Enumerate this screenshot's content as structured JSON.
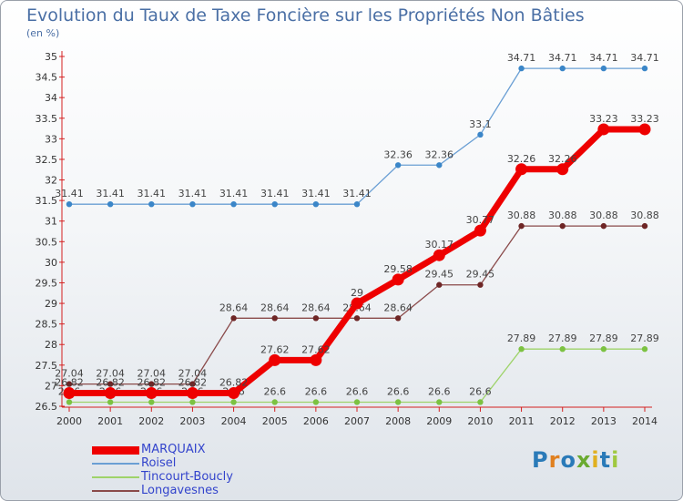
{
  "title": "Evolution du Taux de Taxe Foncière sur les Propriétés Non Bâties",
  "unit_label": "(en %)",
  "logo_text": "Proxiti",
  "chart_data": {
    "type": "line",
    "title": "Evolution du Taux de Taxe Foncière sur les Propriétés Non Bâties",
    "ylabel": "(en %)",
    "xlabel": "",
    "categories": [
      "2000",
      "2001",
      "2002",
      "2003",
      "2004",
      "2005",
      "2006",
      "2007",
      "2008",
      "2009",
      "2010",
      "2011",
      "2012",
      "2013",
      "2014"
    ],
    "ylim": [
      26.5,
      35
    ],
    "yticks": [
      "26.5",
      "27",
      "27.5",
      "28",
      "28.5",
      "29",
      "29.5",
      "30",
      "30.5",
      "31",
      "31.5",
      "32",
      "32.5",
      "33",
      "33.5",
      "34",
      "34.5",
      "35"
    ],
    "grid": false,
    "legend": "bottom-left",
    "series": [
      {
        "name": "Roisel",
        "color": "#6a9fd4",
        "marker": "#3b86c8",
        "width": 1.3,
        "r": 3.2,
        "values": [
          31.41,
          31.41,
          31.41,
          31.41,
          31.41,
          31.41,
          31.41,
          31.41,
          32.36,
          32.36,
          33.1,
          34.71,
          34.71,
          34.71,
          34.71
        ],
        "labels": [
          "31.41",
          "31.41",
          "31.41",
          "31.41",
          "31.41",
          "31.41",
          "31.41",
          "31.41",
          "32.36",
          "32.36",
          "33.1",
          "34.71",
          "34.71",
          "34.71",
          "34.71"
        ]
      },
      {
        "name": "Tincourt-Boucly",
        "color": "#9ed36a",
        "marker": "#7cc242",
        "width": 1.3,
        "r": 3.2,
        "values": [
          26.6,
          26.6,
          26.6,
          26.6,
          26.6,
          26.6,
          26.6,
          26.6,
          26.6,
          26.6,
          26.6,
          27.89,
          27.89,
          27.89,
          27.89
        ],
        "labels": [
          "26.6",
          "26.6",
          "26.6",
          "26.6",
          "26.6",
          "26.6",
          "26.6",
          "26.6",
          "26.6",
          "26.6",
          "26.6",
          "27.89",
          "27.89",
          "27.89",
          "27.89"
        ]
      },
      {
        "name": "Longavesnes",
        "color": "#8a4a4a",
        "marker": "#6e2626",
        "width": 1.3,
        "r": 3.2,
        "values": [
          27.04,
          27.04,
          27.04,
          27.04,
          28.64,
          28.64,
          28.64,
          28.64,
          28.64,
          29.45,
          29.45,
          30.88,
          30.88,
          30.88,
          30.88
        ],
        "labels": [
          "27.04",
          "27.04",
          "27.04",
          "27.04",
          "28.64",
          "28.64",
          "28.64",
          "28.64",
          "28.64",
          "29.45",
          "29.45",
          "30.88",
          "30.88",
          "30.88",
          "30.88"
        ]
      },
      {
        "name": "MARQUAIX",
        "color": "#ee0000",
        "marker": "#ee0000",
        "width": 7,
        "r": 6.5,
        "values": [
          26.82,
          26.82,
          26.82,
          26.82,
          26.82,
          27.62,
          27.62,
          29,
          29.58,
          30.17,
          30.77,
          32.26,
          32.26,
          33.23,
          33.23
        ],
        "labels": [
          "26.82",
          "26.82",
          "26.82",
          "26.82",
          "26.82",
          "27.62",
          "27.62",
          "29",
          "29.58",
          "30.17",
          "30.77",
          "32.26",
          "32.26",
          "33.23",
          "33.23"
        ]
      }
    ],
    "legend_order": [
      "MARQUAIX",
      "Roisel",
      "Tincourt-Boucly",
      "Longavesnes"
    ]
  }
}
